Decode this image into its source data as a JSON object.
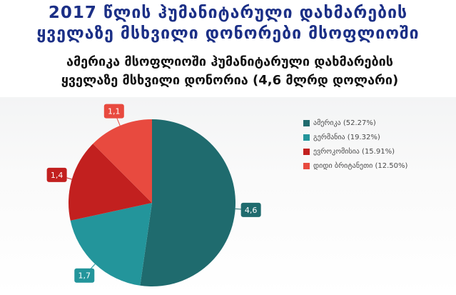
{
  "header": {
    "title_line1": "2017 წლის ჰუმანიტარული დახმარების",
    "title_line2": "ყველაზე მსხვილი დონორები მსოფლიოში",
    "subtitle_line1": "ამერიკა მსოფლიოში ჰუმანიტარული დახმარების",
    "subtitle_line2": "ყველაზე მსხვილი დონორია (4,6 მლრდ დოლარი)"
  },
  "chart_data": {
    "type": "pie",
    "categories": [
      "ამერიკა",
      "გერმანია",
      "ევროკომისია",
      "დიდი ბრიტანეთი"
    ],
    "values": [
      4.6,
      1.7,
      1.4,
      1.1
    ],
    "percentages": [
      52.27,
      19.32,
      15.91,
      12.5
    ],
    "data_labels": [
      "4,6",
      "1,7",
      "1,4",
      "1,1"
    ],
    "legend_labels": [
      "ამერიკა (52.27%)",
      "გერმანია (19.32%)",
      "ევროკომისია (15.91%)",
      "დიდი ბრიტანეთი (12.50%)"
    ],
    "colors": [
      "#1f6b6e",
      "#23959b",
      "#c2201f",
      "#e84a3f"
    ],
    "legend_position": "right"
  }
}
